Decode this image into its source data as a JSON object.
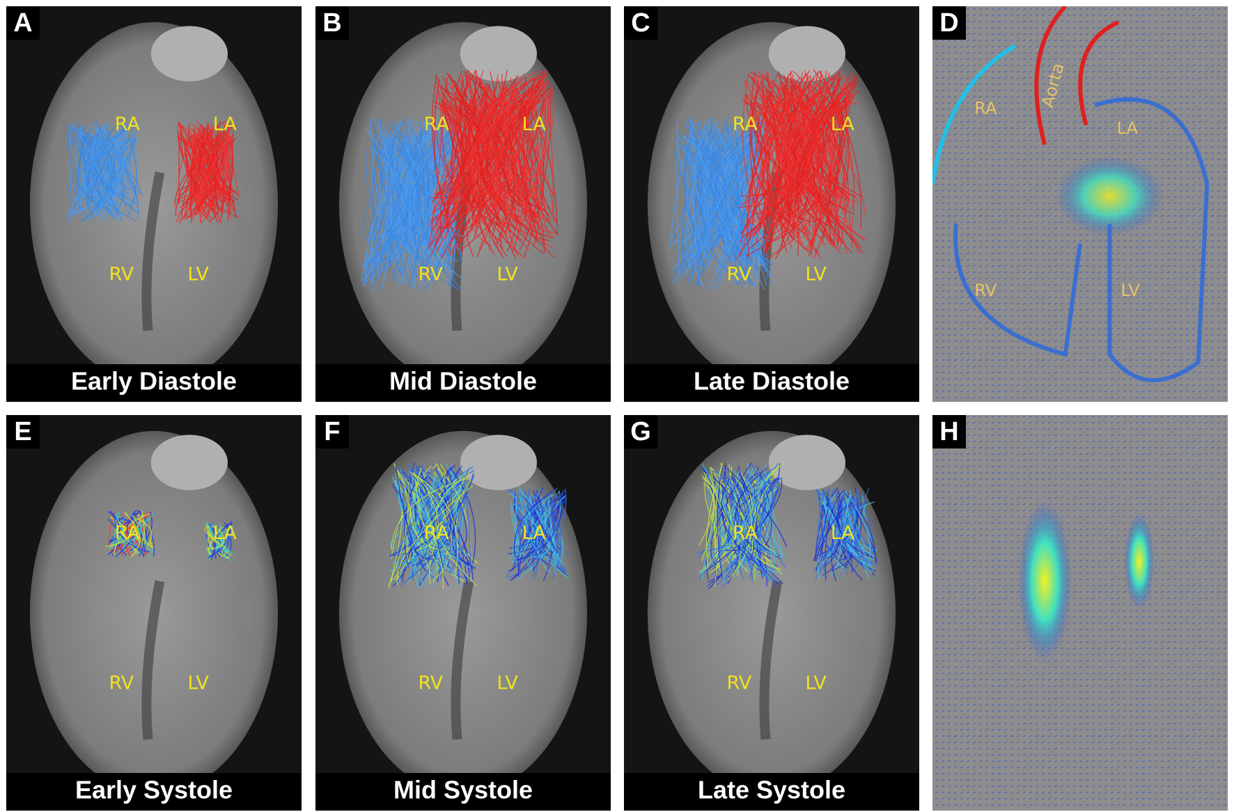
{
  "panels": [
    {
      "letter": "A",
      "caption": "Early Diastole",
      "labels": [
        "RA",
        "LA",
        "RV",
        "LV"
      ]
    },
    {
      "letter": "B",
      "caption": "Mid Diastole",
      "labels": [
        "RA",
        "LA",
        "RV",
        "LV"
      ]
    },
    {
      "letter": "C",
      "caption": "Late Diastole",
      "labels": [
        "RA",
        "LA",
        "RV",
        "LV"
      ]
    },
    {
      "letter": "D",
      "labels": [
        "RA",
        "Aorta",
        "LA",
        "RV",
        "LV"
      ]
    },
    {
      "letter": "E",
      "caption": "Early Systole",
      "labels": [
        "RA",
        "LA",
        "RV",
        "LV"
      ]
    },
    {
      "letter": "F",
      "caption": "Mid Systole",
      "labels": [
        "RA",
        "LA",
        "RV",
        "LV"
      ]
    },
    {
      "letter": "G",
      "caption": "Late Systole",
      "labels": [
        "RA",
        "LA",
        "RV",
        "LV"
      ]
    },
    {
      "letter": "H"
    }
  ]
}
